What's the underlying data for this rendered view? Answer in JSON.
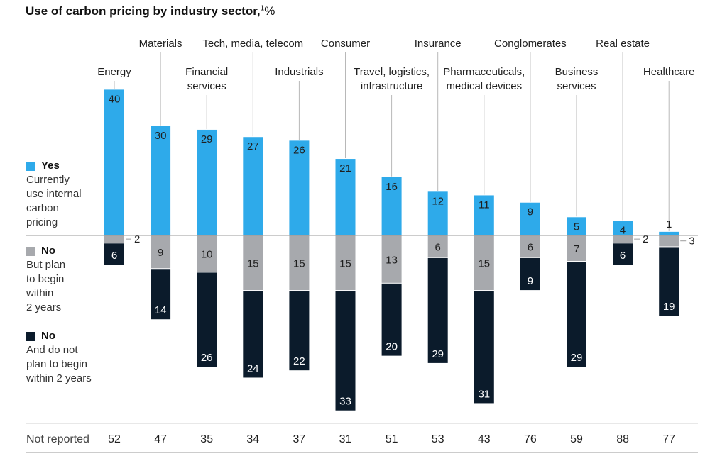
{
  "title": "Use of carbon pricing by industry sector,",
  "title_footnote": "1",
  "title_unit": "%",
  "legend": [
    {
      "key": "yes",
      "head": "Yes",
      "desc": [
        "Currently",
        "use internal",
        "carbon",
        "pricing"
      ],
      "color": "#2eaaea"
    },
    {
      "key": "plan",
      "head": "No",
      "desc": [
        "But plan",
        "to begin",
        "within",
        "2 years"
      ],
      "color": "#a7a9ad"
    },
    {
      "key": "noplan",
      "head": "No",
      "desc": [
        "And do not",
        "plan to begin",
        "within 2 years"
      ],
      "color": "#0b1b2b"
    }
  ],
  "not_reported_label": "Not reported",
  "chart_data": {
    "type": "bar",
    "stacked": "diverging",
    "categories": [
      [
        "Energy"
      ],
      [
        "Materials"
      ],
      [
        "Financial",
        "services"
      ],
      [
        "Tech, media, telecom"
      ],
      [
        "Industrials"
      ],
      [
        "Consumer"
      ],
      [
        "Travel, logistics,",
        "infrastructure"
      ],
      [
        "Insurance"
      ],
      [
        "Pharmaceuticals,",
        "medical devices"
      ],
      [
        "Conglomerates"
      ],
      [
        "Business",
        "services"
      ],
      [
        "Real estate"
      ],
      [
        "Healthcare"
      ]
    ],
    "series": [
      {
        "key": "yes",
        "name": "Yes",
        "values": [
          40,
          30,
          29,
          27,
          26,
          21,
          16,
          12,
          11,
          9,
          5,
          4,
          1
        ]
      },
      {
        "key": "plan",
        "name": "No",
        "values": [
          2,
          9,
          10,
          15,
          15,
          15,
          13,
          6,
          15,
          6,
          7,
          2,
          3
        ]
      },
      {
        "key": "noplan",
        "name": "No",
        "values": [
          6,
          14,
          26,
          24,
          22,
          33,
          20,
          29,
          31,
          9,
          29,
          6,
          19
        ]
      }
    ],
    "not_reported": [
      52,
      47,
      35,
      34,
      37,
      31,
      51,
      53,
      43,
      76,
      59,
      88,
      77
    ],
    "grid": false,
    "legend_position": "left"
  }
}
